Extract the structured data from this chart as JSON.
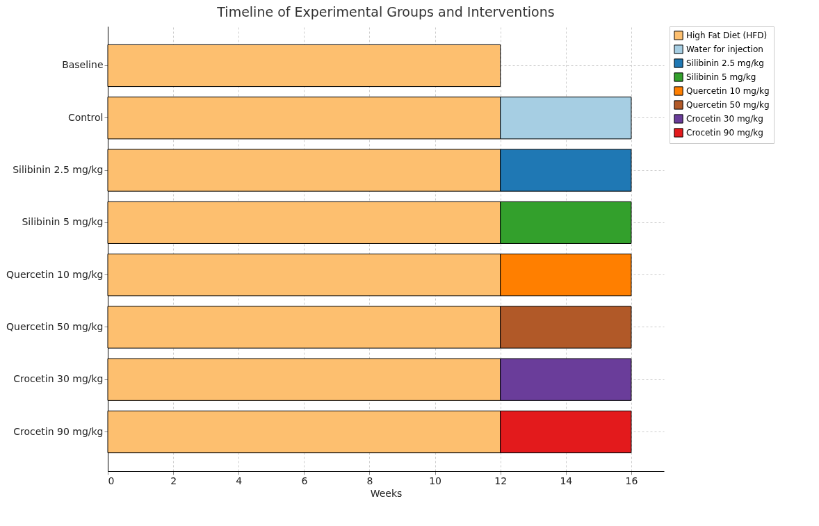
{
  "chart_data": {
    "type": "bar",
    "orientation": "horizontal",
    "stacked": true,
    "title": "Timeline of Experimental Groups and Interventions",
    "xlabel": "Weeks",
    "categories": [
      "Baseline",
      "Control",
      "Silibinin 2.5 mg/kg",
      "Silibinin 5 mg/kg",
      "Quercetin 10 mg/kg",
      "Quercetin 50 mg/kg",
      "Crocetin 30 mg/kg",
      "Crocetin 90 mg/kg"
    ],
    "series": [
      {
        "name": "High Fat Diet (HFD)",
        "color": "#fdbf6f",
        "values": [
          12,
          12,
          12,
          12,
          12,
          12,
          12,
          12
        ]
      },
      {
        "name": "Water for injection",
        "color": "#a6cee3",
        "values": [
          null,
          4,
          null,
          null,
          null,
          null,
          null,
          null
        ]
      },
      {
        "name": "Silibinin 2.5 mg/kg",
        "color": "#1f78b4",
        "values": [
          null,
          null,
          4,
          null,
          null,
          null,
          null,
          null
        ]
      },
      {
        "name": "Silibinin 5 mg/kg",
        "color": "#33a02c",
        "values": [
          null,
          null,
          null,
          4,
          null,
          null,
          null,
          null
        ]
      },
      {
        "name": "Quercetin 10 mg/kg",
        "color": "#ff7f00",
        "values": [
          null,
          null,
          null,
          null,
          4,
          null,
          null,
          null
        ]
      },
      {
        "name": "Quercetin 50 mg/kg",
        "color": "#b15928",
        "values": [
          null,
          null,
          null,
          null,
          null,
          4,
          null,
          null
        ]
      },
      {
        "name": "Crocetin 30 mg/kg",
        "color": "#6a3d9a",
        "values": [
          null,
          null,
          null,
          null,
          null,
          null,
          4,
          null
        ]
      },
      {
        "name": "Crocetin 90 mg/kg",
        "color": "#e31a1c",
        "values": [
          null,
          null,
          null,
          null,
          null,
          null,
          null,
          4
        ]
      }
    ],
    "xlim": [
      0,
      17
    ],
    "xticks": [
      0,
      2,
      4,
      6,
      8,
      10,
      12,
      14,
      16
    ],
    "grid": true,
    "legend": "right"
  }
}
